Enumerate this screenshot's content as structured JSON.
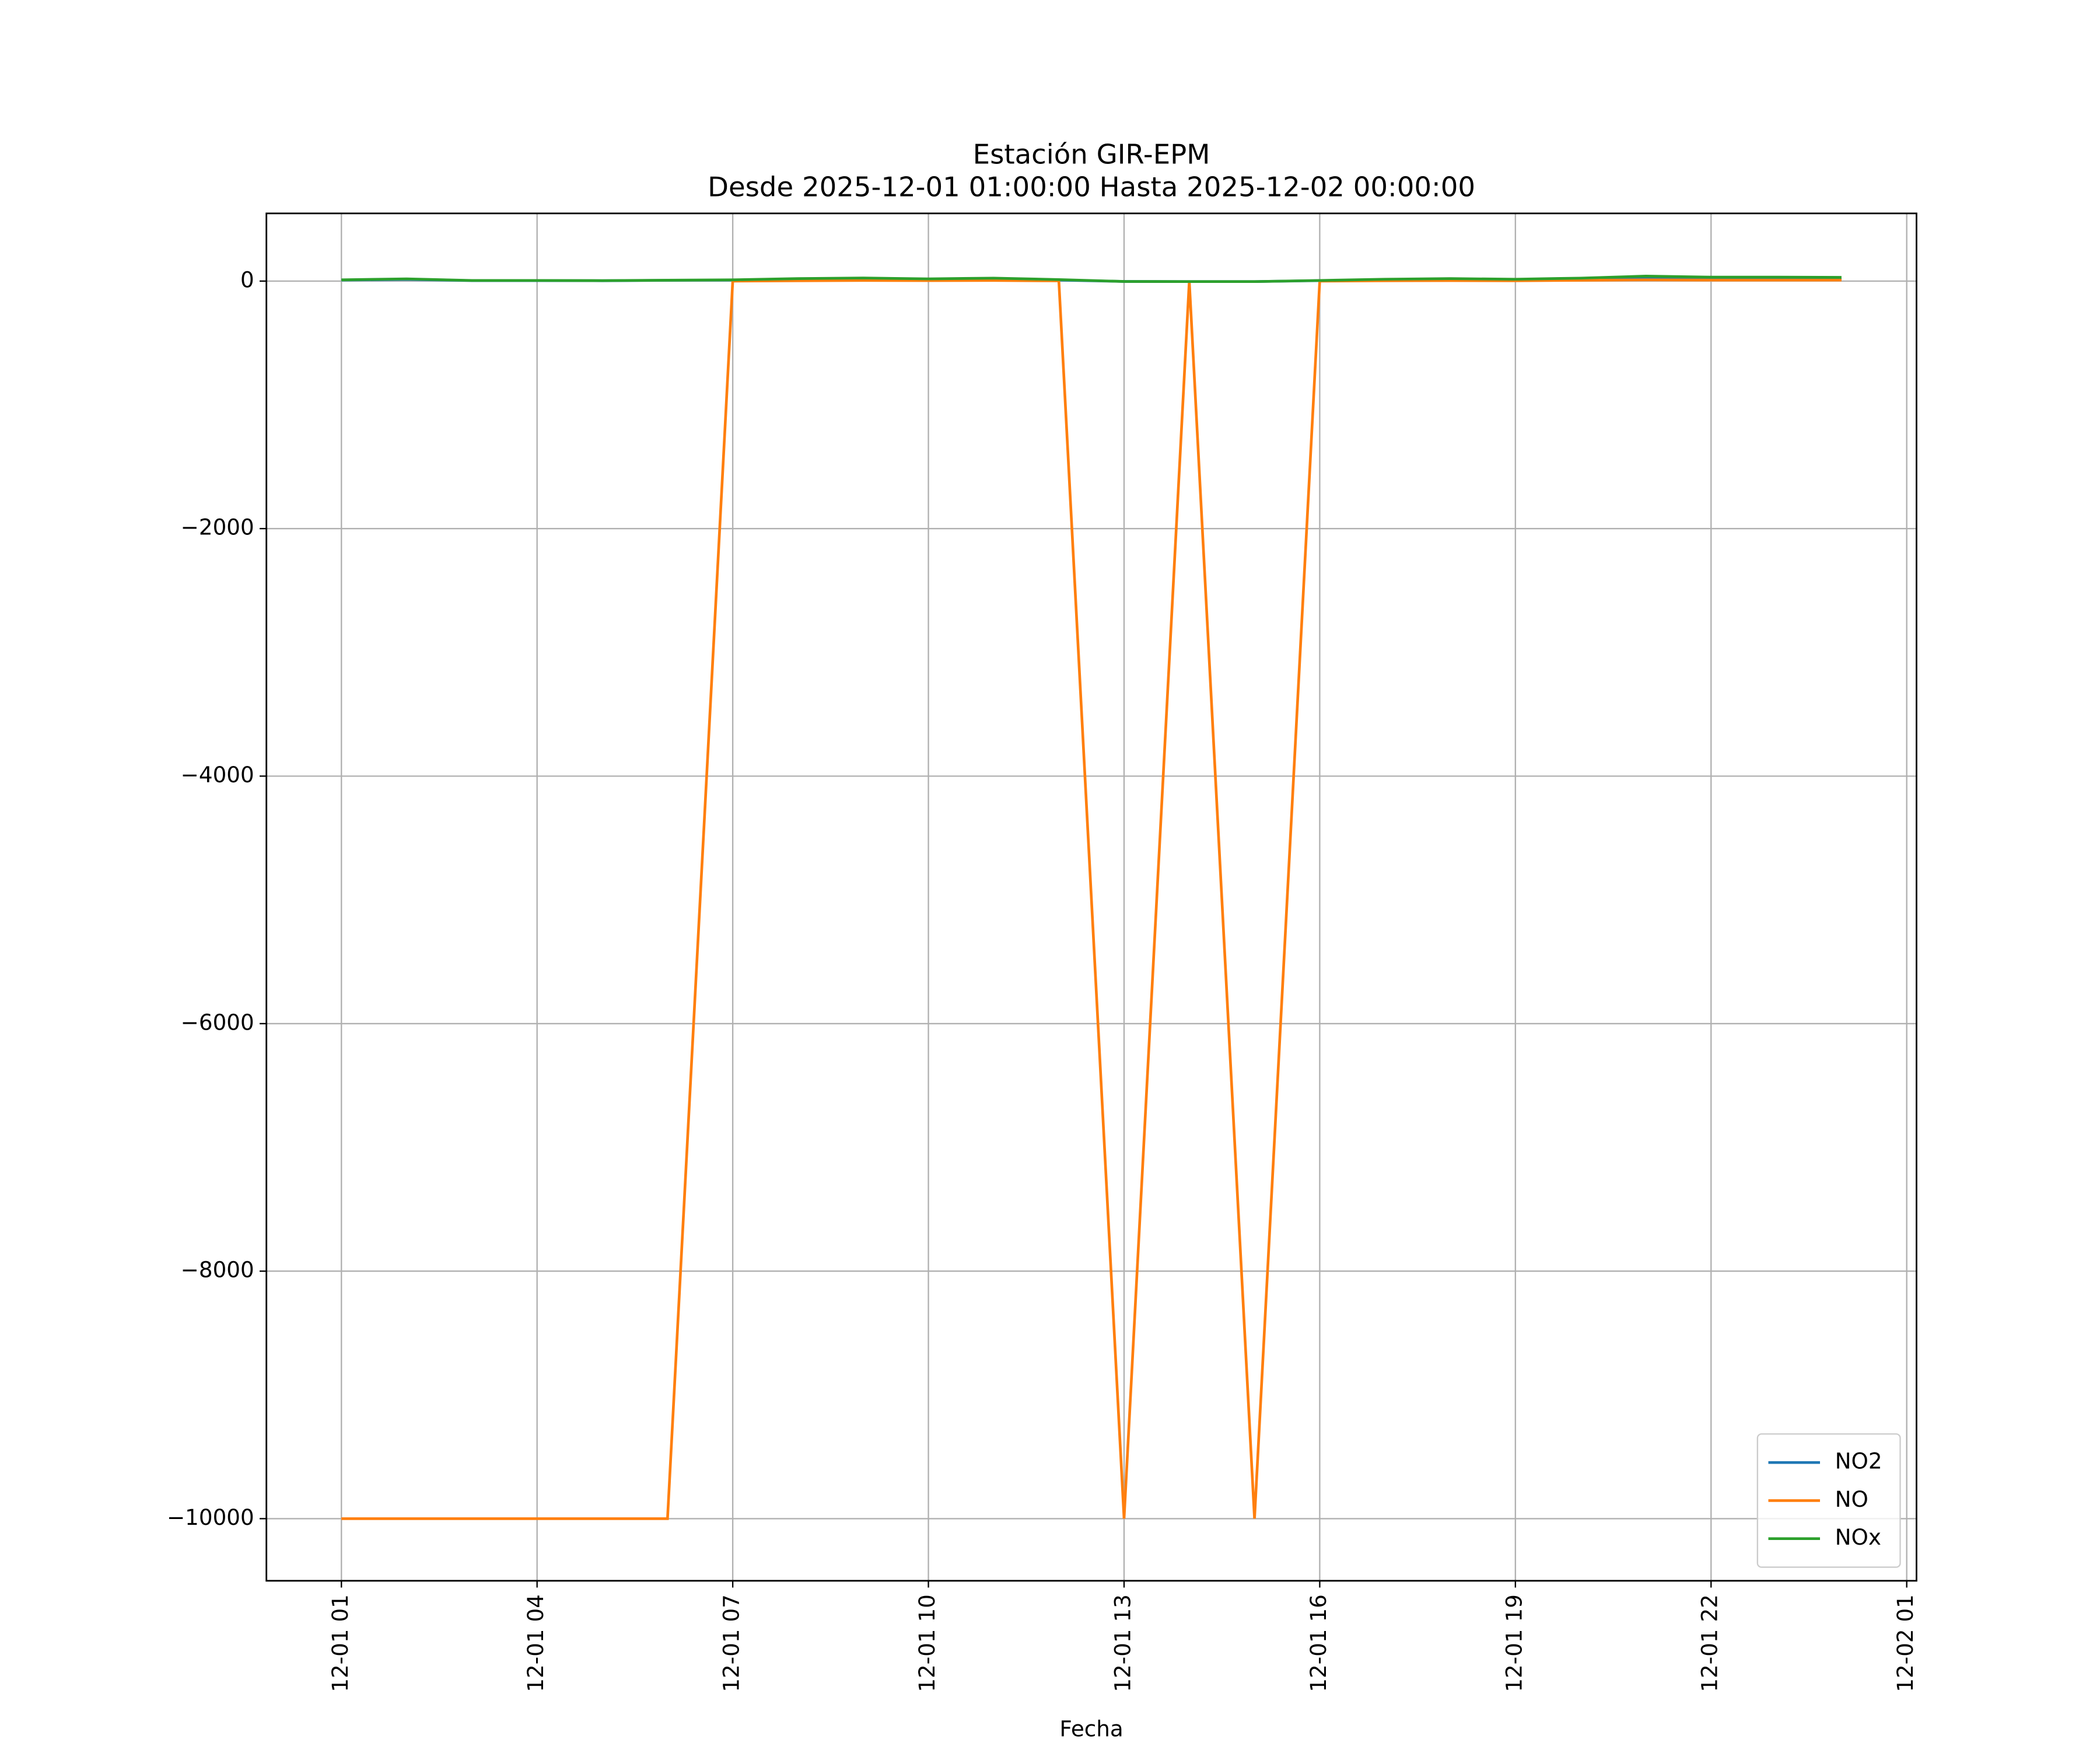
{
  "chart_data": {
    "type": "line",
    "title": "Estación GIR-EPM",
    "subtitle": "Desde 2025-12-01 01:00:00 Hasta 2025-12-02 00:00:00",
    "x_label": "Fecha",
    "x": [
      "12-01 01",
      "12-01 02",
      "12-01 03",
      "12-01 04",
      "12-01 05",
      "12-01 06",
      "12-01 07",
      "12-01 08",
      "12-01 09",
      "12-01 10",
      "12-01 11",
      "12-01 12",
      "12-01 13",
      "12-01 14",
      "12-01 15",
      "12-01 16",
      "12-01 17",
      "12-01 18",
      "12-01 19",
      "12-01 20",
      "12-01 21",
      "12-01 22",
      "12-01 23",
      "12-02 00"
    ],
    "series": [
      {
        "name": "NO2",
        "color": "#1f77b4",
        "values": [
          8,
          14,
          4,
          4,
          3,
          6,
          8,
          12,
          15,
          12,
          14,
          8,
          -3,
          -4,
          -4,
          4,
          10,
          12,
          9,
          14,
          25,
          20,
          18,
          14
        ]
      },
      {
        "name": "NO",
        "color": "#ff7f0e",
        "values": [
          -10000,
          -10000,
          -10000,
          -10000,
          -10000,
          -10000,
          0,
          3,
          5,
          4,
          5,
          2,
          -10000,
          0,
          -10000,
          0,
          3,
          4,
          3,
          6,
          10,
          8,
          8,
          8
        ]
      },
      {
        "name": "NOx",
        "color": "#2ca02c",
        "values": [
          10,
          18,
          5,
          5,
          4,
          7,
          10,
          20,
          25,
          18,
          24,
          12,
          -3,
          -4,
          -4,
          5,
          15,
          20,
          15,
          24,
          40,
          32,
          32,
          30
        ]
      }
    ],
    "xlim": [
      "11-30 23:51",
      "12-02 01:09"
    ],
    "xticks": [
      "12-01 01",
      "12-01 04",
      "12-01 07",
      "12-01 10",
      "12-01 13",
      "12-01 16",
      "12-01 19",
      "12-01 22",
      "12-02 01"
    ],
    "ylim": [
      -10502,
      547
    ],
    "yticks": [
      {
        "value": -10000,
        "label": "−10000"
      },
      {
        "value": -8000,
        "label": "−8000"
      },
      {
        "value": -6000,
        "label": "−6000"
      },
      {
        "value": -4000,
        "label": "−4000"
      },
      {
        "value": -2000,
        "label": "−2000"
      },
      0
    ],
    "grid": true,
    "legend": "lower right"
  }
}
